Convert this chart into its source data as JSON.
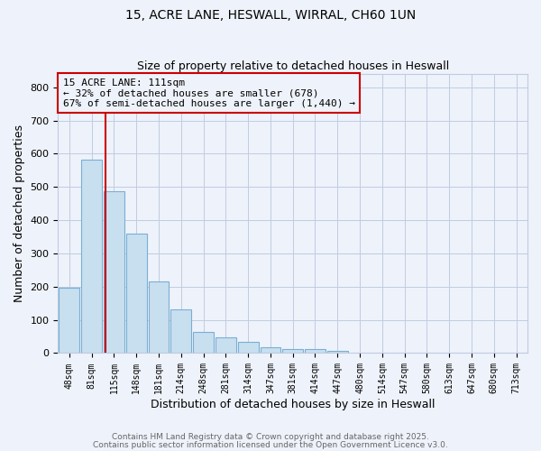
{
  "title1": "15, ACRE LANE, HESWALL, WIRRAL, CH60 1UN",
  "title2": "Size of property relative to detached houses in Heswall",
  "xlabel": "Distribution of detached houses by size in Heswall",
  "ylabel": "Number of detached properties",
  "bin_labels": [
    "48sqm",
    "81sqm",
    "115sqm",
    "148sqm",
    "181sqm",
    "214sqm",
    "248sqm",
    "281sqm",
    "314sqm",
    "347sqm",
    "381sqm",
    "414sqm",
    "447sqm",
    "480sqm",
    "514sqm",
    "547sqm",
    "580sqm",
    "613sqm",
    "647sqm",
    "680sqm",
    "713sqm"
  ],
  "bar_values": [
    196,
    583,
    487,
    360,
    215,
    132,
    65,
    48,
    35,
    18,
    11,
    13,
    7,
    0,
    0,
    0,
    0,
    0,
    0,
    0,
    0
  ],
  "bar_color": "#c8dff0",
  "bar_edge_color": "#7aafd4",
  "bg_color": "#eef2fa",
  "grid_color": "#c0cce0",
  "red_line_bin_index": 2,
  "annotation_text": "15 ACRE LANE: 111sqm\n← 32% of detached houses are smaller (678)\n67% of semi-detached houses are larger (1,440) →",
  "red_line_color": "#cc0000",
  "footer1": "Contains HM Land Registry data © Crown copyright and database right 2025.",
  "footer2": "Contains public sector information licensed under the Open Government Licence v3.0.",
  "ylim": [
    0,
    840
  ],
  "yticks": [
    0,
    100,
    200,
    300,
    400,
    500,
    600,
    700,
    800
  ]
}
